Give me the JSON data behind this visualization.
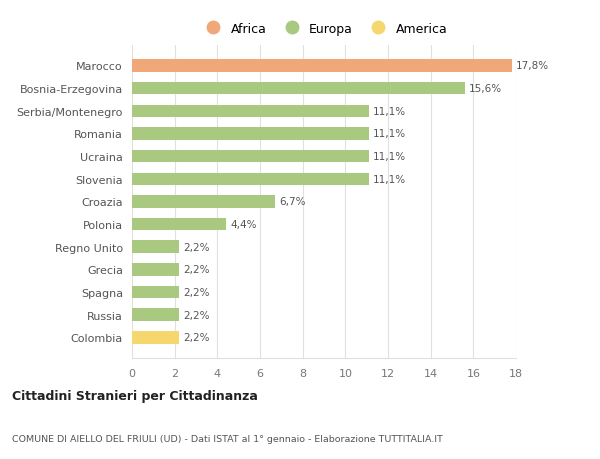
{
  "categories": [
    "Colombia",
    "Russia",
    "Spagna",
    "Grecia",
    "Regno Unito",
    "Polonia",
    "Croazia",
    "Slovenia",
    "Ucraina",
    "Romania",
    "Serbia/Montenegro",
    "Bosnia-Erzegovina",
    "Marocco"
  ],
  "values": [
    2.2,
    2.2,
    2.2,
    2.2,
    2.2,
    4.4,
    6.7,
    11.1,
    11.1,
    11.1,
    11.1,
    15.6,
    17.8
  ],
  "colors": [
    "#f5d76e",
    "#a8c97f",
    "#a8c97f",
    "#a8c97f",
    "#a8c97f",
    "#a8c97f",
    "#a8c97f",
    "#a8c97f",
    "#a8c97f",
    "#a8c97f",
    "#a8c97f",
    "#a8c97f",
    "#f0a878"
  ],
  "labels": [
    "2,2%",
    "2,2%",
    "2,2%",
    "2,2%",
    "2,2%",
    "4,4%",
    "6,7%",
    "11,1%",
    "11,1%",
    "11,1%",
    "11,1%",
    "15,6%",
    "17,8%"
  ],
  "legend": [
    {
      "label": "Africa",
      "color": "#f0a878"
    },
    {
      "label": "Europa",
      "color": "#a8c97f"
    },
    {
      "label": "America",
      "color": "#f5d76e"
    }
  ],
  "xlim": [
    0,
    18
  ],
  "xticks": [
    0,
    2,
    4,
    6,
    8,
    10,
    12,
    14,
    16,
    18
  ],
  "title_bold": "Cittadini Stranieri per Cittadinanza",
  "subtitle": "COMUNE DI AIELLO DEL FRIULI (UD) - Dati ISTAT al 1° gennaio - Elaborazione TUTTITALIA.IT",
  "background_color": "#ffffff",
  "grid_color": "#e0e0e0"
}
